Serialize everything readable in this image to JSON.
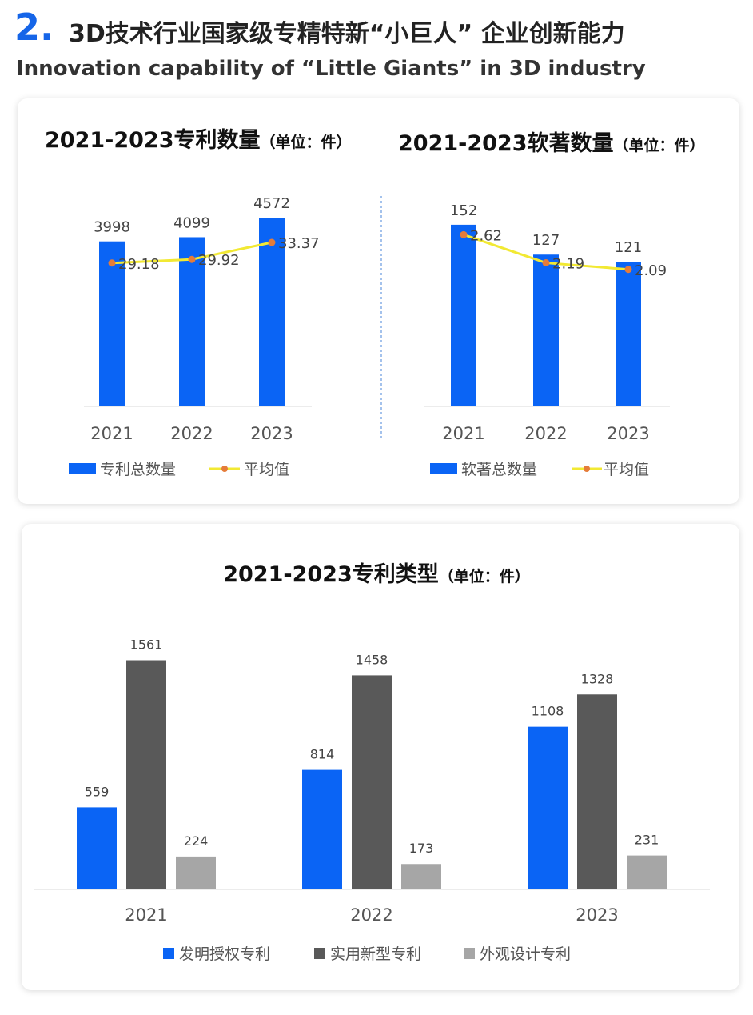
{
  "header": {
    "number": "2.",
    "title": "3D技术行业国家级专精特新“小巨人” 企业创新能力",
    "subtitle": "Innovation capability of “Little Giants” in 3D industry"
  },
  "chart_data": [
    {
      "type": "bar_line",
      "title": "2021-2023专利数量",
      "subtitle": "（单位：件）",
      "categories": [
        "2021",
        "2022",
        "2023"
      ],
      "series": [
        {
          "name": "专利总数量",
          "type": "bar",
          "color": "#0a64f5",
          "values": [
            3998,
            4099,
            4572
          ]
        },
        {
          "name": "平均值",
          "type": "line",
          "axis": "y2",
          "color": "#f2e933",
          "marker_color": "#e57c3a",
          "values": [
            29.18,
            29.92,
            33.37
          ]
        }
      ],
      "ylim": [
        0,
        5000
      ],
      "y2lim": [
        0,
        42
      ]
    },
    {
      "type": "bar_line",
      "title": "2021-2023软著数量",
      "subtitle": "（单位：件）",
      "categories": [
        "2021",
        "2022",
        "2023"
      ],
      "series": [
        {
          "name": "软著总数量",
          "type": "bar",
          "color": "#0a64f5",
          "values": [
            152,
            127,
            121
          ]
        },
        {
          "name": "平均值",
          "type": "line",
          "axis": "y2",
          "color": "#f2e933",
          "marker_color": "#e57c3a",
          "values": [
            2.62,
            2.19,
            2.09
          ]
        }
      ],
      "ylim": [
        0,
        170
      ],
      "y2lim": [
        0,
        3.1
      ]
    },
    {
      "type": "grouped_bar",
      "title": "2021-2023专利类型",
      "subtitle": "（单位：件）",
      "categories": [
        "2021",
        "2022",
        "2023"
      ],
      "series": [
        {
          "name": "发明授权专利",
          "color": "#0a64f5",
          "values": [
            559,
            814,
            1108
          ]
        },
        {
          "name": "实用新型专利",
          "color": "#595959",
          "values": [
            1561,
            1458,
            1328
          ]
        },
        {
          "name": "外观设计专利",
          "color": "#a6a6a6",
          "values": [
            224,
            173,
            231
          ]
        }
      ],
      "ylim": [
        0,
        1700
      ]
    }
  ]
}
